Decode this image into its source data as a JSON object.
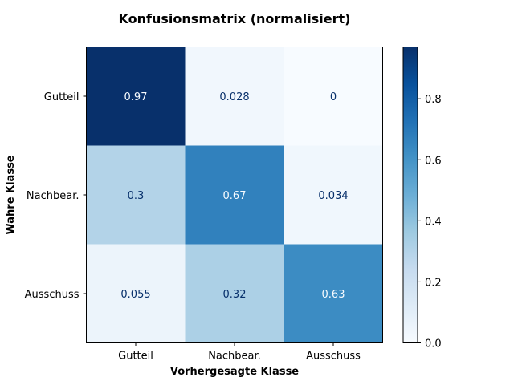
{
  "chart_data": {
    "type": "heatmap",
    "title": "Konfusionsmatrix (normalisiert)",
    "xlabel": "Vorhergesagte Klasse",
    "ylabel": "Wahre Klasse",
    "x_categories": [
      "Gutteil",
      "Nachbear.",
      "Ausschuss"
    ],
    "y_categories": [
      "Gutteil",
      "Nachbear.",
      "Ausschuss"
    ],
    "values": [
      [
        0.97,
        0.028,
        0
      ],
      [
        0.3,
        0.67,
        0.034
      ],
      [
        0.055,
        0.32,
        0.63
      ]
    ],
    "cell_labels": [
      [
        "0.97",
        "0.028",
        "0"
      ],
      [
        "0.3",
        "0.67",
        "0.034"
      ],
      [
        "0.055",
        "0.32",
        "0.63"
      ]
    ],
    "colormap": "Blues",
    "vmin": 0,
    "vmax": 0.97,
    "colorbar": {
      "ticks": [
        0.0,
        0.2,
        0.4,
        0.6,
        0.8
      ],
      "tick_labels": [
        "0.0",
        "0.2",
        "0.4",
        "0.6",
        "0.8"
      ]
    },
    "grid": false
  }
}
